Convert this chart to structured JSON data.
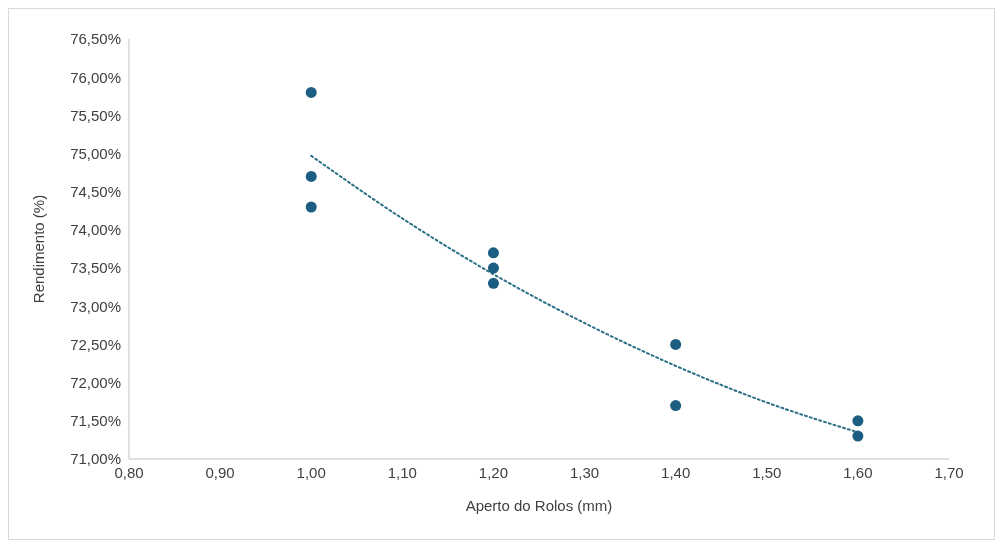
{
  "chart_data": {
    "type": "scatter",
    "xlabel": "Aperto do Rolos (mm)",
    "ylabel": "Rendimento (%)",
    "xlim": [
      0.8,
      1.7
    ],
    "xticks": [
      {
        "value": 0.8,
        "label": "0,80"
      },
      {
        "value": 0.9,
        "label": "0,90"
      },
      {
        "value": 1.0,
        "label": "1,00"
      },
      {
        "value": 1.1,
        "label": "1,10"
      },
      {
        "value": 1.2,
        "label": "1,20"
      },
      {
        "value": 1.3,
        "label": "1,30"
      },
      {
        "value": 1.4,
        "label": "1,40"
      },
      {
        "value": 1.5,
        "label": "1,50"
      },
      {
        "value": 1.6,
        "label": "1,60"
      },
      {
        "value": 1.7,
        "label": "1,70"
      }
    ],
    "ylim": [
      71,
      76.5
    ],
    "yticks": [
      {
        "value": 71,
        "label": "71,00%"
      },
      {
        "value": 71.5,
        "label": "71,50%"
      },
      {
        "value": 72,
        "label": "72,00%"
      },
      {
        "value": 72.5,
        "label": "72,50%"
      },
      {
        "value": 73,
        "label": "73,00%"
      },
      {
        "value": 73.5,
        "label": "73,50%"
      },
      {
        "value": 74,
        "label": "74,00%"
      },
      {
        "value": 74.5,
        "label": "74,50%"
      },
      {
        "value": 75,
        "label": "75,00%"
      },
      {
        "value": 75.5,
        "label": "75,50%"
      },
      {
        "value": 76,
        "label": "76,00%"
      },
      {
        "value": 76.5,
        "label": "76,50%"
      }
    ],
    "grid": false,
    "legend": false,
    "series": [
      {
        "color": "#1b5e82",
        "marker": "circle",
        "x": [
          1.0,
          1.0,
          1.0,
          1.2,
          1.2,
          1.2,
          1.4,
          1.4,
          1.6,
          1.6
        ],
        "values": [
          75.8,
          74.7,
          74.3,
          73.7,
          73.5,
          73.3,
          72.5,
          71.7,
          71.5,
          71.3
        ]
      },
      {
        "type": "line",
        "color": "#2a6f85",
        "line_style": "dotted",
        "marker": "none",
        "x": [
          1.0,
          1.1,
          1.2,
          1.3,
          1.4,
          1.5,
          1.6
        ],
        "values": [
          74.97,
          74.15,
          73.42,
          72.78,
          72.22,
          71.74,
          71.35
        ]
      }
    ]
  }
}
